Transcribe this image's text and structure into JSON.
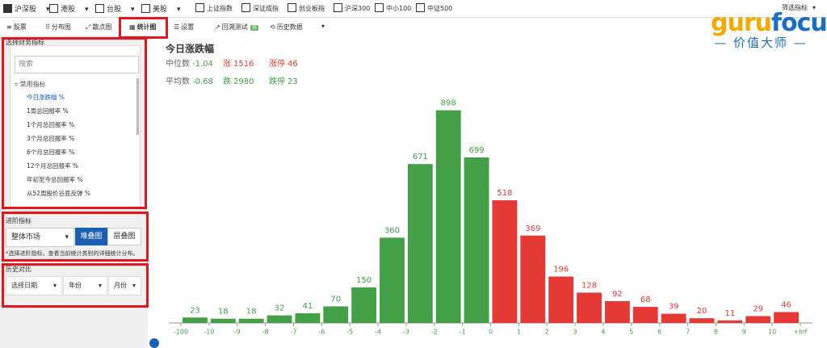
{
  "toolbar": {
    "markets": [
      "沪深股",
      "港股",
      "台股",
      "美股"
    ],
    "indices": [
      "上证指数",
      "深证成指",
      "创业板指",
      "沪深300",
      "中小100",
      "中证500"
    ],
    "filter": "筛选指标"
  },
  "tabs": [
    "股票",
    "分布图",
    "散点图",
    "统计图",
    "设置",
    "回溯测试",
    "历史数据"
  ],
  "beta_badge": "测",
  "logo": {
    "brand_a": "guru",
    "brand_b": "focus",
    "subtitle": "价值大师"
  },
  "sidebar": {
    "metric_label": "选择财务指标",
    "search": "搜索",
    "group": "常用指标",
    "items": [
      "今日涨跌幅 %",
      "1周总回报率 %",
      "1个月总回报率 %",
      "3个月总回报率 %",
      "6个月总回报率 %",
      "12个月总回报率 %",
      "年初至今总回报率 %",
      "从52周股价谷底反弹 %"
    ],
    "advanced_label": "进阶指标",
    "scope": "整体市场",
    "modes": [
      "堆叠图",
      "层叠图"
    ],
    "note": "*选择进阶指标，查看当前统计类别的详细统计分布。",
    "history_label": "历史对比",
    "history_selects": [
      "选择日期",
      "年份",
      "月份"
    ]
  },
  "chart_data": {
    "type": "bar",
    "title": "今日涨跌幅",
    "stats": [
      {
        "label": "中位数",
        "value": -1.04,
        "color": "#43a047"
      },
      {
        "label": "涨",
        "value": 1516,
        "color": "#e53935"
      },
      {
        "label": "涨停",
        "value": 46,
        "color": "#e53935"
      },
      {
        "label": "平均数",
        "value": -0.68,
        "color": "#43a047"
      },
      {
        "label": "跌",
        "value": 2980,
        "color": "#43a047"
      },
      {
        "label": "跌停",
        "value": 23,
        "color": "#43a047"
      }
    ],
    "bin_labels": [
      "-100",
      "-10",
      "-9",
      "-8",
      "-7",
      "-6",
      "-5",
      "-4",
      "-3",
      "-2",
      "-1",
      "0",
      "1",
      "2",
      "3",
      "4",
      "5",
      "6",
      "7",
      "8",
      "9",
      "10",
      "+Inf"
    ],
    "values": [
      23,
      18,
      18,
      32,
      41,
      70,
      150,
      360,
      671,
      898,
      699,
      518,
      369,
      196,
      128,
      92,
      68,
      39,
      20,
      11,
      29,
      46
    ],
    "colors": [
      "#43a047",
      "#43a047",
      "#43a047",
      "#43a047",
      "#43a047",
      "#43a047",
      "#43a047",
      "#43a047",
      "#43a047",
      "#43a047",
      "#43a047",
      "#e53935",
      "#e53935",
      "#e53935",
      "#e53935",
      "#e53935",
      "#e53935",
      "#e53935",
      "#e53935",
      "#e53935",
      "#e53935",
      "#e53935"
    ],
    "ylim": [
      0,
      900
    ]
  }
}
